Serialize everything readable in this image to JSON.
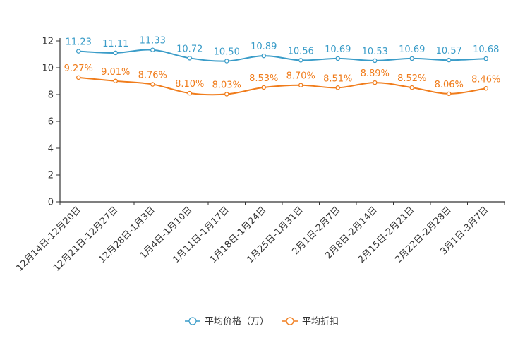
{
  "chart_data": {
    "type": "line",
    "title": "",
    "xlabel": "",
    "ylabel": "",
    "ylim": [
      0,
      12
    ],
    "yticks": [
      0,
      2,
      4,
      6,
      8,
      10,
      12
    ],
    "grid": false,
    "legend_position": "bottom",
    "categories": [
      "12月14日-12月20日",
      "12月21日-12月27日",
      "12月28日-1月3日",
      "1月4日-1月10日",
      "1月11日-1月17日",
      "1月18日-1月24日",
      "1月25日-1月31日",
      "2月1日-2月7日",
      "2月8日-2月14日",
      "2月15日-2月21日",
      "2月22日-2月28日",
      "3月1日-3月7日"
    ],
    "series": [
      {
        "name": "平均价格（万）",
        "color": "#3a9cc8",
        "values": [
          11.23,
          11.11,
          11.33,
          10.72,
          10.5,
          10.89,
          10.56,
          10.69,
          10.53,
          10.69,
          10.57,
          10.68
        ],
        "labels": [
          "11.23",
          "11.11",
          "11.33",
          "10.72",
          "10.50",
          "10.89",
          "10.56",
          "10.69",
          "10.53",
          "10.69",
          "10.57",
          "10.68"
        ]
      },
      {
        "name": "平均折扣",
        "color": "#f07c1b",
        "values": [
          9.27,
          9.01,
          8.76,
          8.1,
          8.03,
          8.53,
          8.7,
          8.51,
          8.89,
          8.52,
          8.06,
          8.46
        ],
        "labels": [
          "9.27%",
          "9.01%",
          "8.76%",
          "8.10%",
          "8.03%",
          "8.53%",
          "8.70%",
          "8.51%",
          "8.89%",
          "8.52%",
          "8.06%",
          "8.46%"
        ]
      }
    ]
  }
}
